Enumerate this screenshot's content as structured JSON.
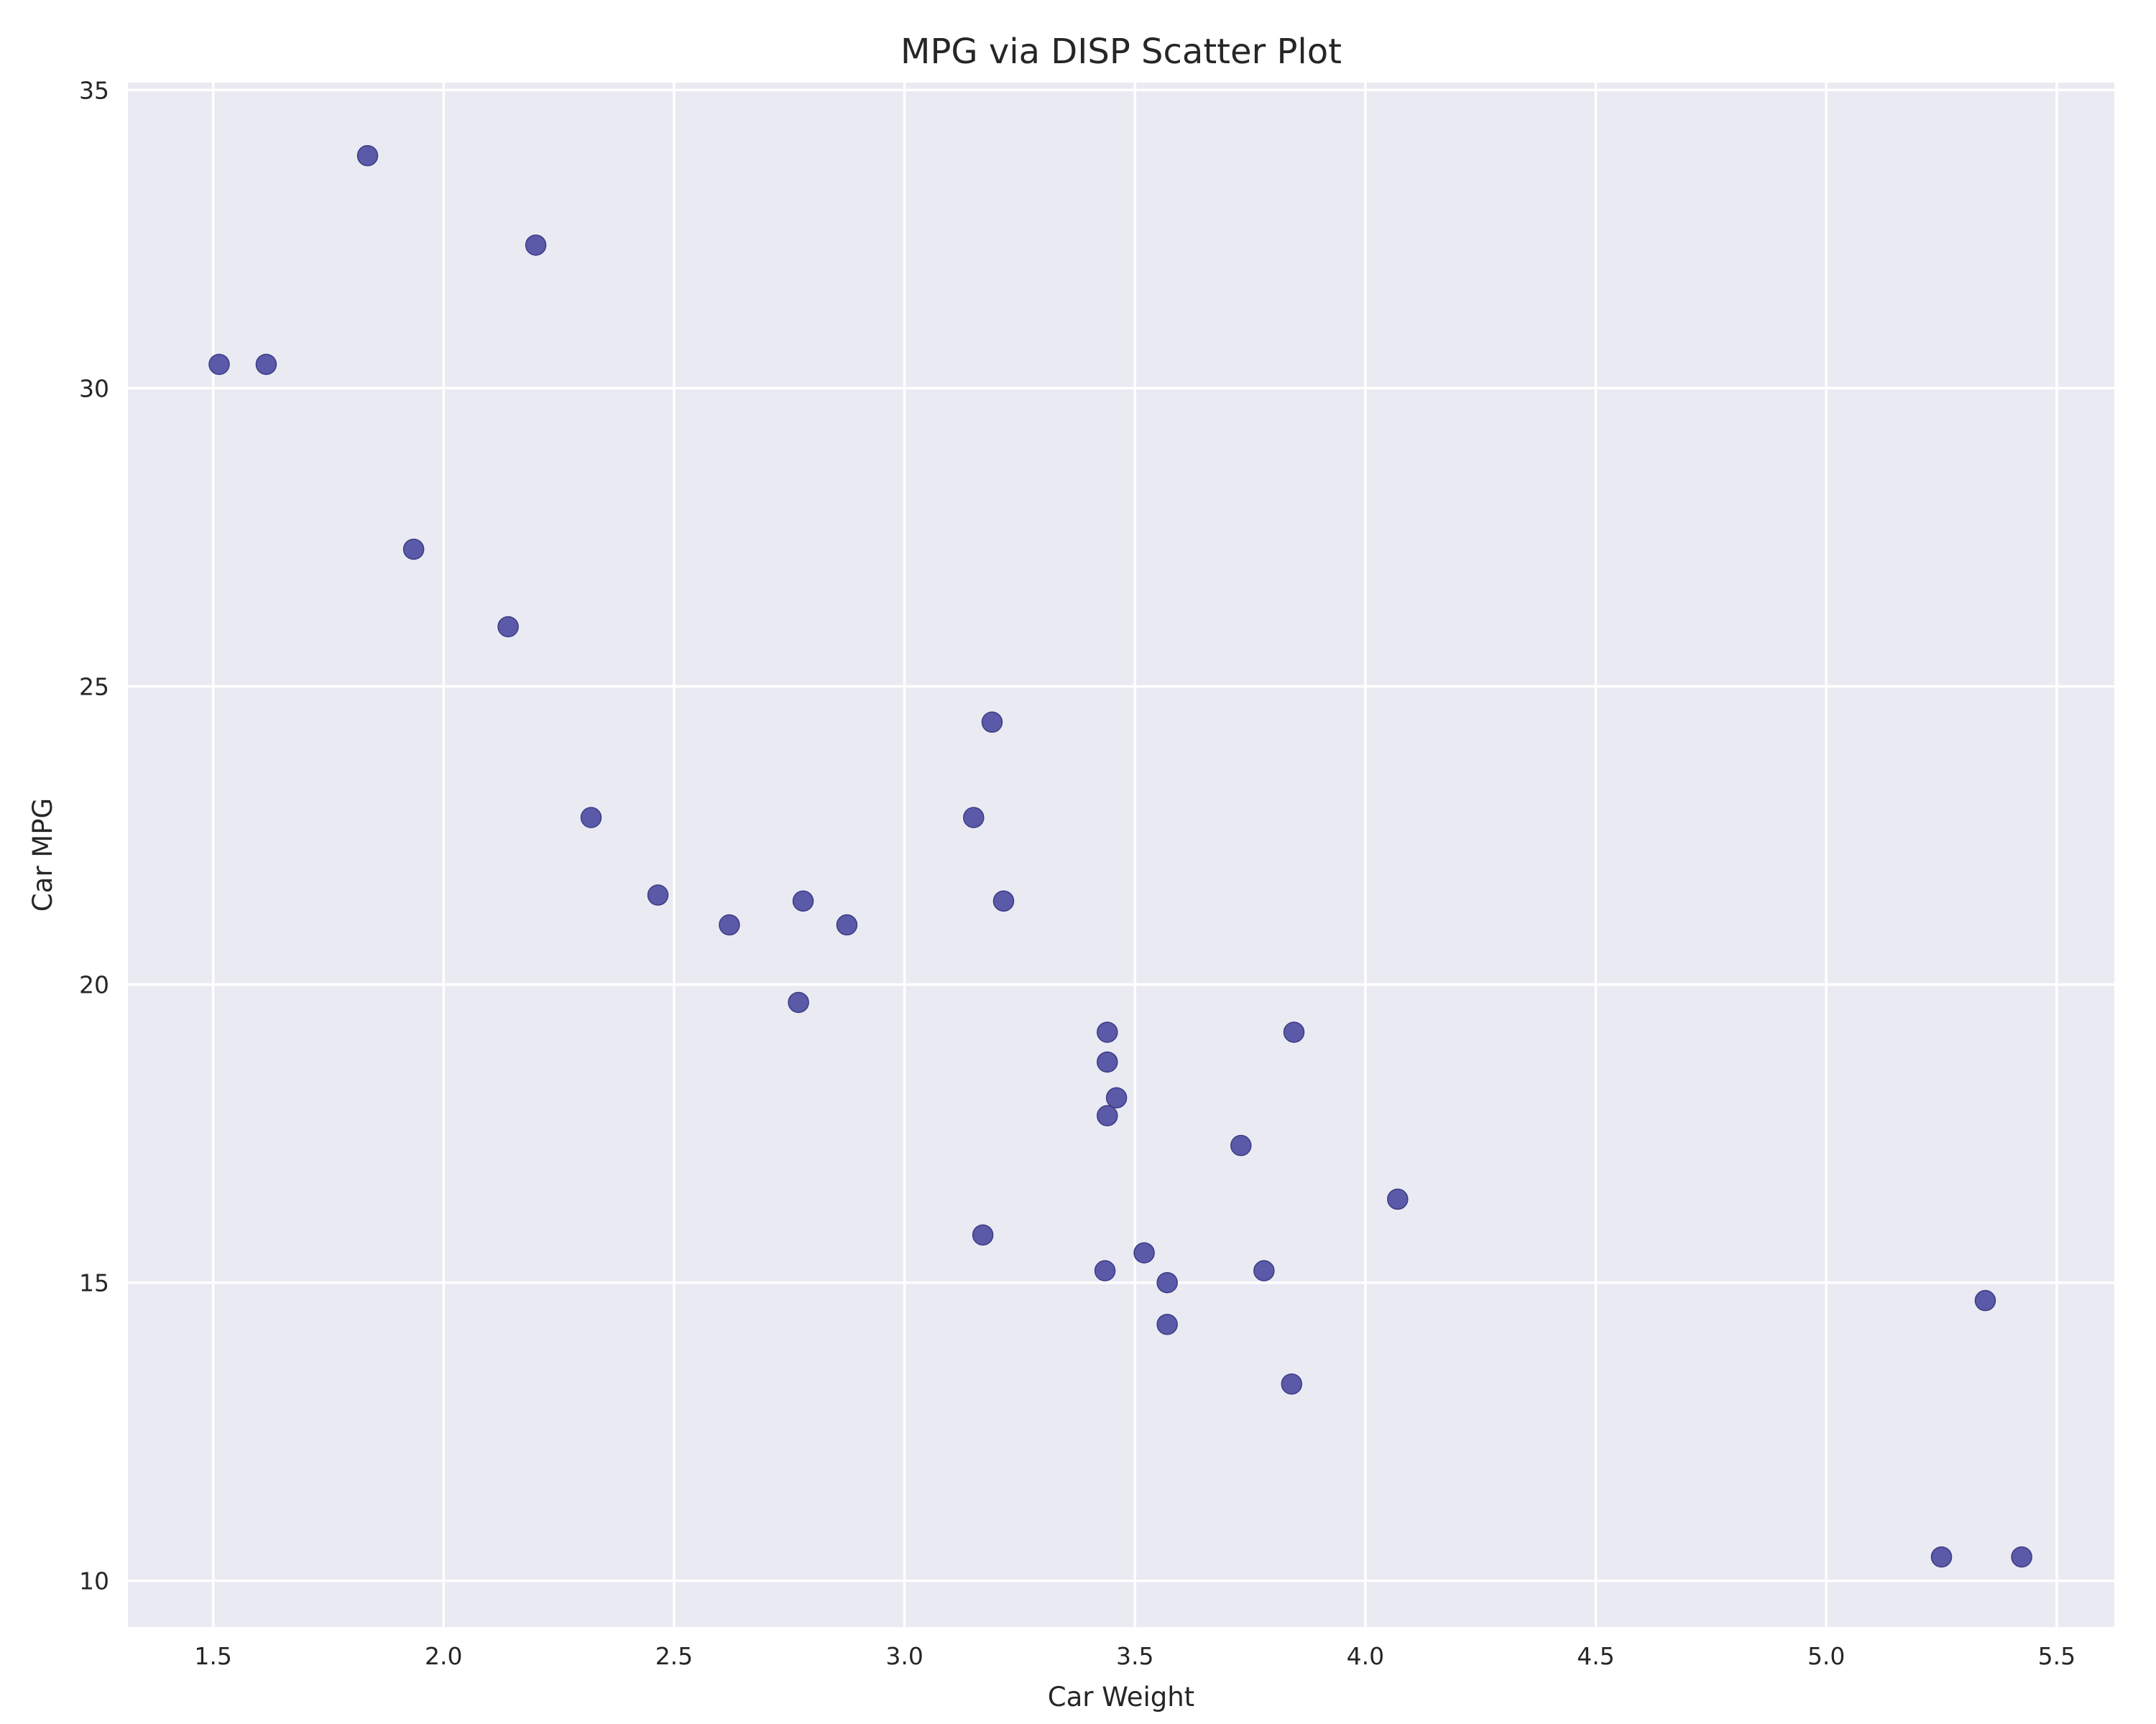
{
  "colors": {
    "plot_background": "#eaeaf2",
    "grid": "#ffffff",
    "marker": "#5a5aa8",
    "text": "#262626"
  },
  "chart_data": {
    "type": "scatter",
    "title": "MPG via DISP Scatter Plot",
    "xlabel": "Car Weight",
    "ylabel": "Car MPG",
    "xlim": [
      1.315,
      5.625
    ],
    "ylim": [
      9.225,
      35.125
    ],
    "xticks": [
      1.5,
      2.0,
      2.5,
      3.0,
      3.5,
      4.0,
      4.5,
      5.0,
      5.5
    ],
    "xtick_labels": [
      "1.5",
      "2.0",
      "2.5",
      "3.0",
      "3.5",
      "4.0",
      "4.5",
      "5.0",
      "5.5"
    ],
    "yticks": [
      10,
      15,
      20,
      25,
      30,
      35
    ],
    "ytick_labels": [
      "10",
      "15",
      "20",
      "25",
      "30",
      "35"
    ],
    "grid": true,
    "series": [
      {
        "points": [
          {
            "x": 2.62,
            "y": 21.0
          },
          {
            "x": 2.875,
            "y": 21.0
          },
          {
            "x": 2.32,
            "y": 22.8
          },
          {
            "x": 3.215,
            "y": 21.4
          },
          {
            "x": 3.44,
            "y": 18.7
          },
          {
            "x": 3.46,
            "y": 18.1
          },
          {
            "x": 3.57,
            "y": 14.3
          },
          {
            "x": 3.19,
            "y": 24.4
          },
          {
            "x": 3.15,
            "y": 22.8
          },
          {
            "x": 3.44,
            "y": 19.2
          },
          {
            "x": 3.44,
            "y": 17.8
          },
          {
            "x": 4.07,
            "y": 16.4
          },
          {
            "x": 3.73,
            "y": 17.3
          },
          {
            "x": 3.78,
            "y": 15.2
          },
          {
            "x": 5.25,
            "y": 10.4
          },
          {
            "x": 5.424,
            "y": 10.4
          },
          {
            "x": 5.345,
            "y": 14.7
          },
          {
            "x": 2.2,
            "y": 32.4
          },
          {
            "x": 1.615,
            "y": 30.4
          },
          {
            "x": 1.835,
            "y": 33.9
          },
          {
            "x": 2.465,
            "y": 21.5
          },
          {
            "x": 3.52,
            "y": 15.5
          },
          {
            "x": 3.435,
            "y": 15.2
          },
          {
            "x": 3.84,
            "y": 13.3
          },
          {
            "x": 3.845,
            "y": 19.2
          },
          {
            "x": 1.935,
            "y": 27.3
          },
          {
            "x": 2.14,
            "y": 26.0
          },
          {
            "x": 1.513,
            "y": 30.4
          },
          {
            "x": 3.17,
            "y": 15.8
          },
          {
            "x": 2.77,
            "y": 19.7
          },
          {
            "x": 3.57,
            "y": 15.0
          },
          {
            "x": 2.78,
            "y": 21.4
          }
        ]
      }
    ]
  }
}
